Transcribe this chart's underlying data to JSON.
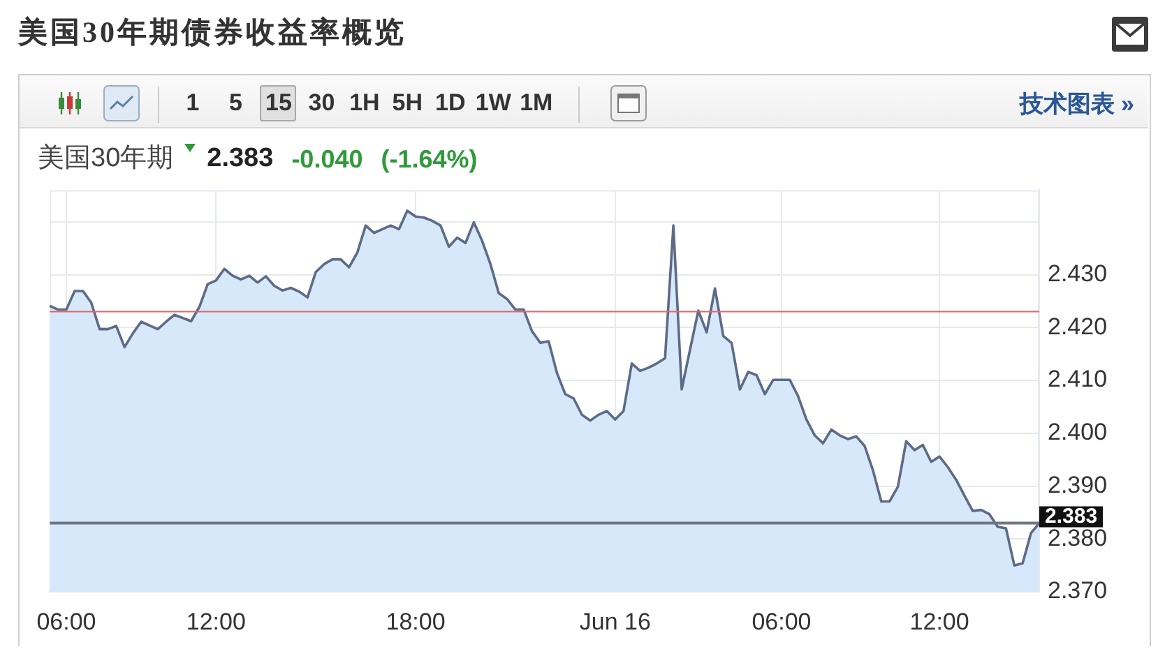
{
  "chart_data": {
    "type": "area",
    "title": "美国30年期债券收益率概览",
    "subtitle": "美国30年期 2.383 -0.040 (-1.64%)",
    "annotations": [
      "1 5 15 30 1H 5H 1D 1W 1M",
      "技术图表 »"
    ],
    "categories": [
      null,
      null,
      "06:00",
      null,
      null,
      null,
      null,
      null,
      null,
      null,
      null,
      null,
      null,
      null,
      null,
      null,
      null,
      null,
      null,
      null,
      "12:00",
      null,
      null,
      null,
      null,
      null,
      null,
      null,
      null,
      null,
      null,
      null,
      null,
      null,
      null,
      null,
      null,
      null,
      null,
      null,
      null,
      null,
      null,
      null,
      "18:00",
      null,
      null,
      null,
      null,
      null,
      null,
      null,
      null,
      null,
      null,
      null,
      null,
      null,
      null,
      null,
      null,
      null,
      null,
      null,
      null,
      null,
      null,
      null,
      "Jun 16",
      null,
      null,
      null,
      null,
      null,
      null,
      null,
      null,
      null,
      null,
      null,
      null,
      null,
      null,
      null,
      null,
      null,
      null,
      null,
      "06:00",
      null,
      null,
      null,
      null,
      null,
      null,
      null,
      null,
      null,
      null,
      null,
      null,
      null,
      null,
      null,
      null,
      null,
      null,
      "12:00",
      null,
      null,
      null,
      null,
      null,
      null,
      null,
      null,
      null,
      null,
      null,
      null
    ],
    "values": [
      2.4241,
      2.4234,
      2.4234,
      2.4269,
      2.4269,
      2.4247,
      2.4197,
      2.4197,
      2.4203,
      2.4163,
      2.4189,
      2.4211,
      2.4204,
      2.4197,
      2.4211,
      2.4224,
      2.4218,
      2.4212,
      2.4239,
      2.4282,
      2.4289,
      2.4311,
      2.4298,
      2.4291,
      2.4298,
      2.4285,
      2.4297,
      2.4279,
      2.427,
      2.4275,
      2.4268,
      2.4257,
      2.4305,
      2.432,
      2.4329,
      2.4329,
      2.4314,
      2.4342,
      2.4393,
      2.4379,
      2.4386,
      2.4393,
      2.4386,
      2.4421,
      2.441,
      2.4408,
      2.4402,
      2.4393,
      2.4353,
      2.437,
      2.436,
      2.4399,
      2.4364,
      2.432,
      2.4265,
      2.4254,
      2.4234,
      2.4234,
      2.4193,
      2.4171,
      2.4174,
      2.4114,
      2.4074,
      2.4066,
      2.4035,
      2.4024,
      2.4035,
      2.4042,
      2.4026,
      2.4042,
      2.4132,
      2.4118,
      2.4124,
      2.4132,
      2.4142,
      2.4393,
      2.4083,
      2.4158,
      2.4232,
      2.4191,
      2.4274,
      2.4184,
      2.4171,
      2.4083,
      2.4116,
      2.411,
      2.4074,
      2.4101,
      2.4101,
      2.4101,
      2.407,
      2.4026,
      2.3996,
      2.3981,
      2.4007,
      2.3996,
      2.3989,
      2.3994,
      2.3976,
      2.393,
      2.3871,
      2.3871,
      2.3899,
      2.3985,
      2.3968,
      2.3978,
      2.3946,
      2.3956,
      2.3936,
      2.3912,
      2.3882,
      2.3853,
      2.3855,
      2.3847,
      2.3823,
      2.382,
      2.375,
      2.3754,
      2.3811,
      2.383
    ],
    "color": "#5d6b86",
    "ylim": [
      2.37,
      2.446
    ],
    "yticks": [
      {
        "value": 2.37,
        "label": "2.370"
      },
      {
        "value": 2.38,
        "label": "2.380"
      },
      {
        "value": 2.39,
        "label": "2.390"
      },
      {
        "value": 2.4,
        "label": "2.400"
      },
      {
        "value": 2.41,
        "label": "2.410"
      },
      {
        "value": 2.42,
        "label": "2.420"
      },
      {
        "value": 2.43,
        "label": "2.430"
      },
      {
        "value": 2.44,
        "label": null
      }
    ],
    "grid": true,
    "ref_lines": [
      {
        "axis": "y",
        "value": 2.423,
        "color": "#e06666"
      },
      {
        "axis": "y",
        "value": 2.383,
        "label": "2.383",
        "color": "#6e7582"
      }
    ]
  }
}
